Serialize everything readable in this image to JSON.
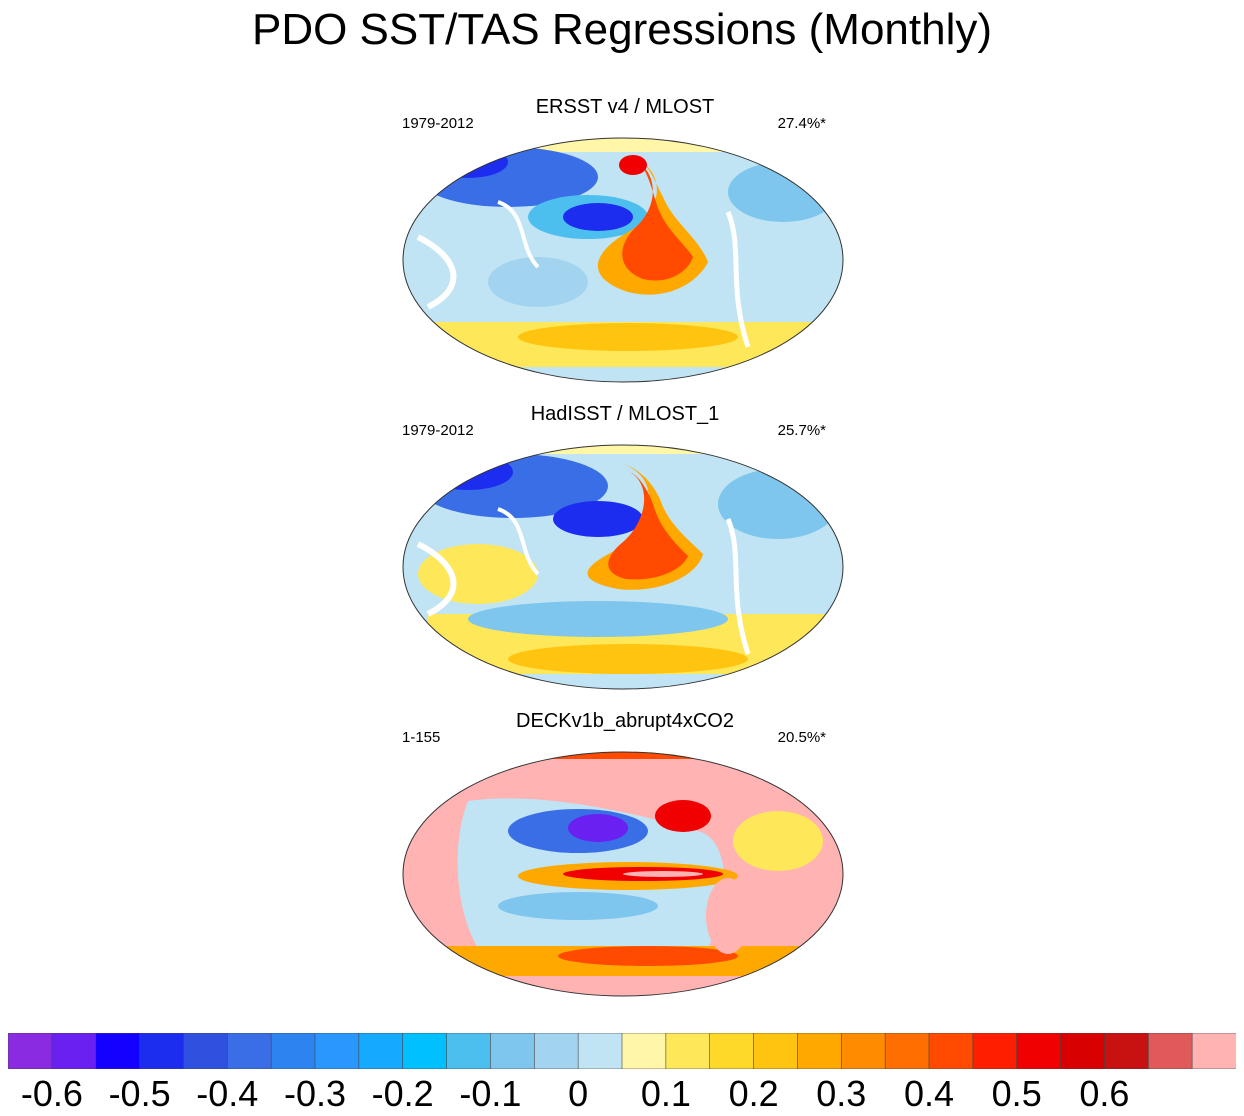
{
  "title": "PDO SST/TAS Regressions (Monthly)",
  "chart_data": {
    "type": "heatmap",
    "projection": "Robinson-like global map, Pacific-centered",
    "panels": [
      {
        "title": "ERSST v4 / MLOST",
        "period": "1979-2012",
        "variance_explained": "27.4%*",
        "pattern": {
          "north_pacific_min": -0.5,
          "eastern_pacific_horseshoe_max": 0.45,
          "southern_band": 0.3,
          "tropical_west": -0.1
        }
      },
      {
        "title": "HadISST / MLOST_1",
        "period": "1979-2012",
        "variance_explained": "25.7%*",
        "pattern": {
          "north_pacific_min": -0.45,
          "eastern_pacific_horseshoe_max": 0.4,
          "southern_band": 0.25,
          "tropical_west": -0.15
        }
      },
      {
        "title": "DECKv1b_abrupt4xCO2",
        "period": "1-155",
        "variance_explained": "20.5%*",
        "pattern": {
          "north_pacific_min": -0.65,
          "equatorial_tongue_max": 0.6,
          "southern_band": 0.4,
          "land_saturated": 0.65
        }
      }
    ],
    "colorbar": {
      "colors": [
        "#8a2be2",
        "#6a20f0",
        "#1400ff",
        "#1d2df0",
        "#3050e0",
        "#3a6ee6",
        "#2d83f0",
        "#2a97ff",
        "#16aaff",
        "#00c0ff",
        "#4dbfef",
        "#7ec6ed",
        "#a2d4ef",
        "#c0e4f4",
        "#fff6a8",
        "#ffe75a",
        "#ffd92a",
        "#ffc40f",
        "#ffa800",
        "#ff8c00",
        "#ff6e00",
        "#ff4a00",
        "#ff1e00",
        "#f00000",
        "#d80000",
        "#c81212",
        "#e05a5a",
        "#ffb3b3"
      ],
      "tick_labels": [
        "-0.6",
        "-0.5",
        "-0.4",
        "-0.3",
        "-0.2",
        "-0.1",
        "0",
        "0.1",
        "0.2",
        "0.3",
        "0.4",
        "0.5",
        "0.6"
      ],
      "tick_values": [
        -0.6,
        -0.5,
        -0.4,
        -0.3,
        -0.2,
        -0.1,
        0,
        0.1,
        0.2,
        0.3,
        0.4,
        0.5,
        0.6
      ],
      "levels_min": -0.65,
      "levels_step": 0.05
    }
  }
}
